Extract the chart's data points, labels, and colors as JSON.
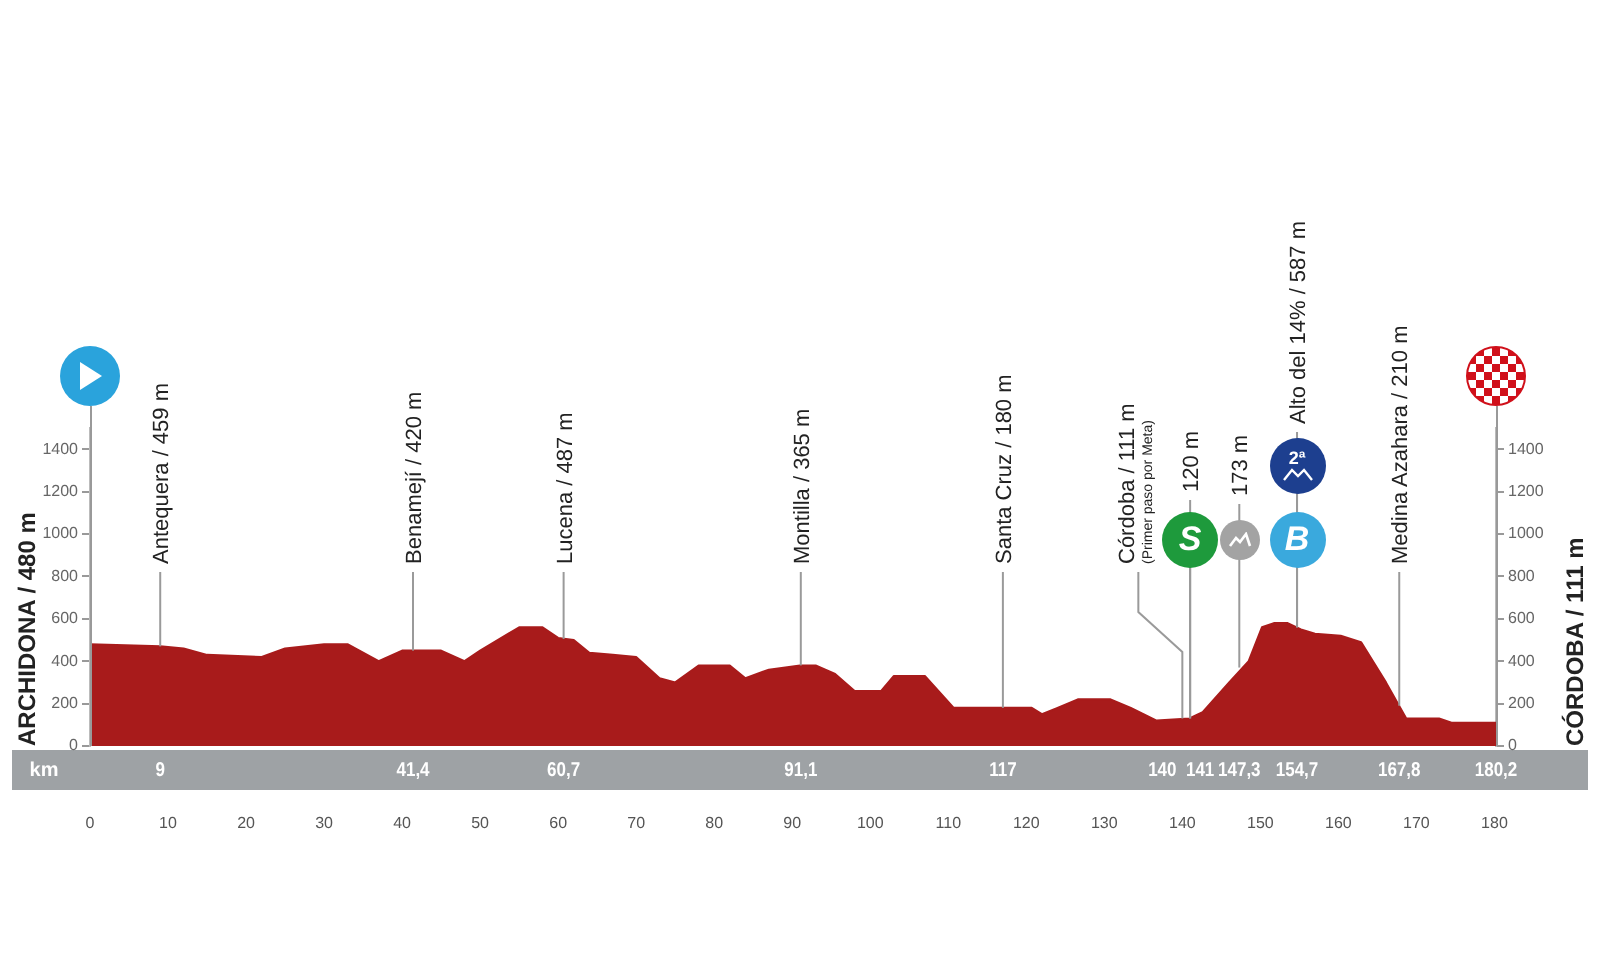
{
  "chart_data": {
    "type": "area",
    "color": "#a81b1b",
    "marker": "none",
    "x": [
      0,
      9,
      12,
      15,
      22,
      25,
      30,
      33,
      37,
      40,
      45,
      48,
      50,
      55,
      58,
      60,
      62,
      64,
      67,
      70,
      73,
      75,
      78,
      82,
      84,
      87,
      91,
      93,
      95.5,
      98,
      101.4,
      103,
      107,
      110.7,
      113,
      120.7,
      122,
      124,
      126.6,
      130.8,
      133.4,
      136.7,
      140.9,
      142.6,
      146,
      148.5,
      150.2,
      151.8,
      153.5,
      155.2,
      157,
      160.3,
      162.9,
      166.1,
      168.7,
      172.9,
      174.5,
      180.2
    ],
    "values": [
      480,
      470,
      460,
      430,
      420,
      460,
      480,
      480,
      400,
      450,
      450,
      400,
      450,
      560,
      560,
      510,
      500,
      440,
      430,
      420,
      320,
      300,
      380,
      380,
      320,
      360,
      380,
      380,
      340,
      260,
      260,
      330,
      330,
      180,
      180,
      180,
      150,
      180,
      220,
      220,
      180,
      120,
      130,
      160,
      300,
      400,
      560,
      580,
      580,
      550,
      530,
      520,
      490,
      300,
      130,
      130,
      110,
      110
    ],
    "xlim": [
      0,
      180.2
    ],
    "xticks": [
      0,
      10,
      20,
      30,
      40,
      50,
      60,
      70,
      80,
      90,
      100,
      110,
      120,
      130,
      140,
      150,
      160,
      170,
      180
    ],
    "ylim": [
      0,
      1500
    ],
    "yticks": [
      0,
      200,
      400,
      600,
      800,
      1000,
      1200,
      1400
    ],
    "y2lim": [
      0,
      1500
    ],
    "y2ticks": [
      0,
      200,
      400,
      600,
      800,
      1000,
      1200,
      1400
    ],
    "annotations": [
      "ARCHIDONA / 480 m",
      "CÓRDOBA / 111 m",
      "km",
      "9",
      "41,4",
      "60,7",
      "91,1",
      "117",
      "140",
      "141",
      "147,3",
      "154,7",
      "167,8",
      "180,2",
      {
        "text": "S",
        "x": 141,
        "y": 130
      },
      {
        "text": "2ª",
        "x": 154.7,
        "y": 560
      },
      {
        "text": "B",
        "x": 154.7,
        "y": 560
      },
      {
        "text": "Antequera / 459 m",
        "x": 9,
        "y": 470
      },
      {
        "text": "Benamejí / 420 m",
        "x": 41.4,
        "y": 450
      },
      {
        "text": "Lucena / 487 m",
        "x": 60.7,
        "y": 505
      },
      {
        "text": "Montilla / 365 m",
        "x": 91.1,
        "y": 380
      },
      {
        "text": "Santa Cruz / 180 m",
        "x": 117,
        "y": 180
      },
      {
        "text": "Córdoba / 111 m\n(Primer paso por Meta)",
        "x": 140,
        "y": 130
      },
      {
        "text": "120 m",
        "x": 141,
        "y": 130
      },
      {
        "text": "173 m",
        "x": 147.3,
        "y": 370
      },
      {
        "text": "Alto del 14% / 587 m",
        "x": 154.7,
        "y": 560
      },
      {
        "text": "Medina Azahara / 210 m",
        "x": 167.8,
        "y": 190
      }
    ]
  }
}
